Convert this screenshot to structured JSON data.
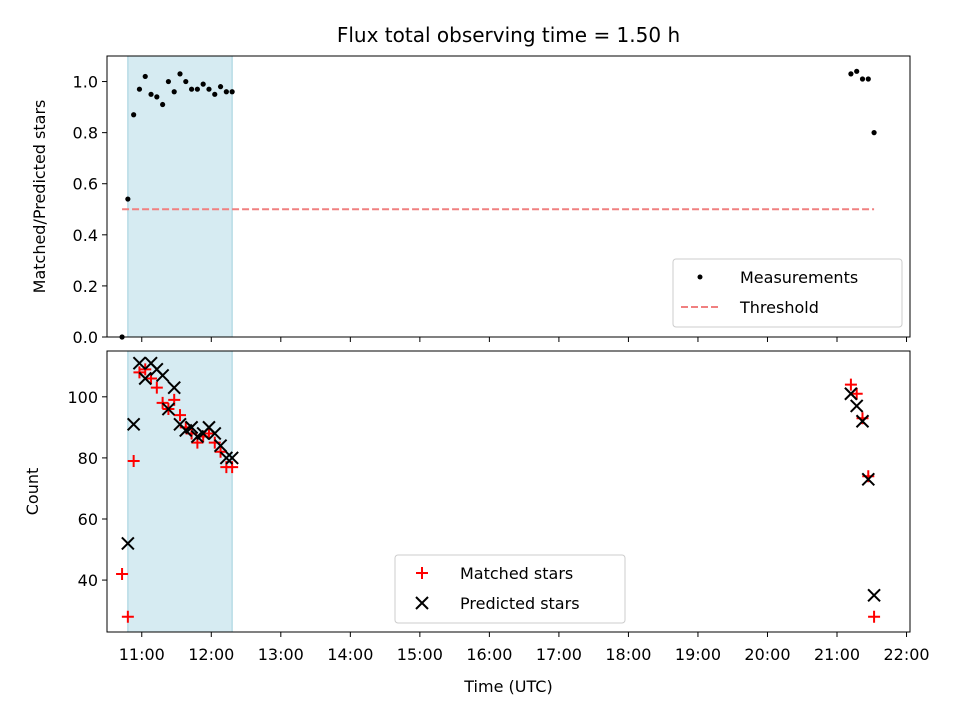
{
  "chart_data": [
    {
      "type": "scatter",
      "title": "Flux total observing time = 1.50 h",
      "xlabel": "",
      "ylabel": "Matched/Predicted stars",
      "ylim": [
        0,
        1.1
      ],
      "yticks": [
        0.0,
        0.2,
        0.4,
        0.6,
        0.8,
        1.0
      ],
      "ytick_labels": [
        "0.0",
        "0.2",
        "0.4",
        "0.6",
        "0.8",
        "1.0"
      ],
      "legend_position": "lower-right",
      "colors": {
        "measurements": "#000000",
        "threshold": "#f08080",
        "window": "#add8e6"
      },
      "series": [
        {
          "name": "Measurements",
          "x": [
            "10:43",
            "10:48",
            "10:53",
            "10:58",
            "11:03",
            "11:08",
            "11:13",
            "11:18",
            "11:23",
            "11:28",
            "11:33",
            "11:38",
            "11:43",
            "11:48",
            "11:53",
            "11:58",
            "12:03",
            "12:08",
            "12:13",
            "12:18",
            "21:12",
            "21:17",
            "21:22",
            "21:27",
            "21:32"
          ],
          "values": [
            0.0,
            0.54,
            0.87,
            0.97,
            1.02,
            0.95,
            0.94,
            0.91,
            1.0,
            0.96,
            1.03,
            1.0,
            0.97,
            0.97,
            0.99,
            0.97,
            0.95,
            0.98,
            0.96,
            0.96,
            1.03,
            1.04,
            1.01,
            1.01,
            0.8
          ]
        },
        {
          "name": "Threshold",
          "x": [
            "10:43",
            "21:32"
          ],
          "values": [
            0.5,
            0.5
          ]
        }
      ],
      "shaded_region": {
        "x_start": "10:48",
        "x_end": "12:18"
      }
    },
    {
      "type": "scatter",
      "xlabel": "Time (UTC)",
      "ylabel": "Count",
      "ylim": [
        23,
        115
      ],
      "yticks": [
        40,
        60,
        80,
        100
      ],
      "ytick_labels": [
        "40",
        "60",
        "80",
        "100"
      ],
      "xticks": [
        "11:00",
        "12:00",
        "13:00",
        "14:00",
        "15:00",
        "16:00",
        "17:00",
        "18:00",
        "19:00",
        "20:00",
        "21:00",
        "22:00"
      ],
      "xlim": [
        "10:30",
        "22:03"
      ],
      "legend_position": "lower-center",
      "colors": {
        "matched": "#ff0000",
        "predicted": "#000000",
        "window": "#add8e6"
      },
      "series": [
        {
          "name": "Matched stars",
          "x": [
            "10:43",
            "10:48",
            "10:53",
            "10:58",
            "11:03",
            "11:08",
            "11:13",
            "11:18",
            "11:23",
            "11:28",
            "11:33",
            "11:38",
            "11:43",
            "11:48",
            "11:53",
            "11:58",
            "12:03",
            "12:08",
            "12:13",
            "12:18",
            "21:12",
            "21:17",
            "21:22",
            "21:27",
            "21:32"
          ],
          "values": [
            42,
            28,
            79,
            108,
            109,
            106,
            103,
            98,
            96,
            99,
            94,
            90,
            88,
            85,
            87,
            88,
            85,
            82,
            77,
            77,
            104,
            101,
            93,
            74,
            28
          ]
        },
        {
          "name": "Predicted stars",
          "x": [
            "10:48",
            "10:53",
            "10:58",
            "11:03",
            "11:08",
            "11:13",
            "11:18",
            "11:23",
            "11:28",
            "11:33",
            "11:38",
            "11:43",
            "11:48",
            "11:53",
            "11:58",
            "12:03",
            "12:08",
            "12:13",
            "12:18",
            "21:12",
            "21:17",
            "21:22",
            "21:27",
            "21:32"
          ],
          "values": [
            52,
            91,
            111,
            106,
            111,
            109,
            107,
            96,
            103,
            91,
            89,
            90,
            87,
            88,
            90,
            88,
            84,
            80,
            80,
            101,
            97,
            92,
            73,
            35
          ]
        }
      ],
      "shaded_region": {
        "x_start": "10:48",
        "x_end": "12:18"
      }
    }
  ]
}
